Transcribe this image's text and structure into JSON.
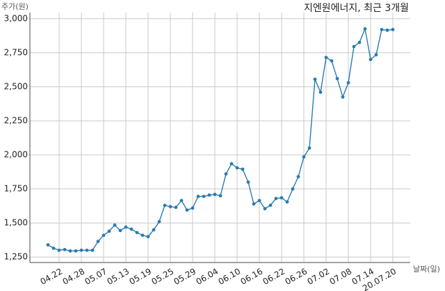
{
  "chart_data": {
    "type": "line",
    "title": "지엔원에너지, 최근 3개월",
    "y_label": "주가(원)",
    "x_label": "날짜(일)",
    "categories": [
      null,
      null,
      "04.22",
      null,
      null,
      null,
      "04.28",
      null,
      null,
      null,
      "05.07",
      null,
      null,
      null,
      "05.13",
      null,
      null,
      null,
      "05.19",
      null,
      null,
      null,
      "05.25",
      null,
      null,
      null,
      "05.29",
      null,
      null,
      null,
      "06.04",
      null,
      null,
      null,
      "06.10",
      null,
      null,
      null,
      "06.16",
      null,
      null,
      null,
      "06.22",
      null,
      null,
      null,
      "06.26",
      null,
      null,
      null,
      "07.02",
      null,
      null,
      null,
      "07.08",
      null,
      null,
      null,
      "07.14",
      null,
      null,
      null,
      "20.07.20"
    ],
    "series": [
      {
        "name": "주가",
        "color": "#2b7bb0",
        "values": [
          1340,
          1315,
          1300,
          1305,
          1295,
          1295,
          1300,
          1300,
          1300,
          1365,
          1410,
          1440,
          1485,
          1445,
          1470,
          1455,
          1430,
          1410,
          1400,
          1450,
          1510,
          1630,
          1620,
          1615,
          1665,
          1595,
          1610,
          1695,
          1695,
          1705,
          1710,
          1700,
          1860,
          1935,
          1905,
          1895,
          1800,
          1640,
          1665,
          1605,
          1630,
          1680,
          1685,
          1655,
          1750,
          1840,
          1985,
          2050,
          2555,
          2460,
          2715,
          2690,
          2560,
          2425,
          2530,
          2795,
          2825,
          2925,
          2700,
          2735,
          2920,
          2915,
          2920
        ]
      }
    ],
    "ylim": [
      1210,
      3045
    ],
    "yticks": [
      {
        "value": 1250,
        "label": "1,250"
      },
      {
        "value": 1500,
        "label": "1,500"
      },
      {
        "value": 1750,
        "label": "1,750"
      },
      {
        "value": 2000,
        "label": "2,000"
      },
      {
        "value": 2250,
        "label": "2,250"
      },
      {
        "value": 2500,
        "label": "2,500"
      },
      {
        "value": 2750,
        "label": "2,750"
      },
      {
        "value": 3000,
        "label": "3,000"
      }
    ],
    "grid": true
  }
}
